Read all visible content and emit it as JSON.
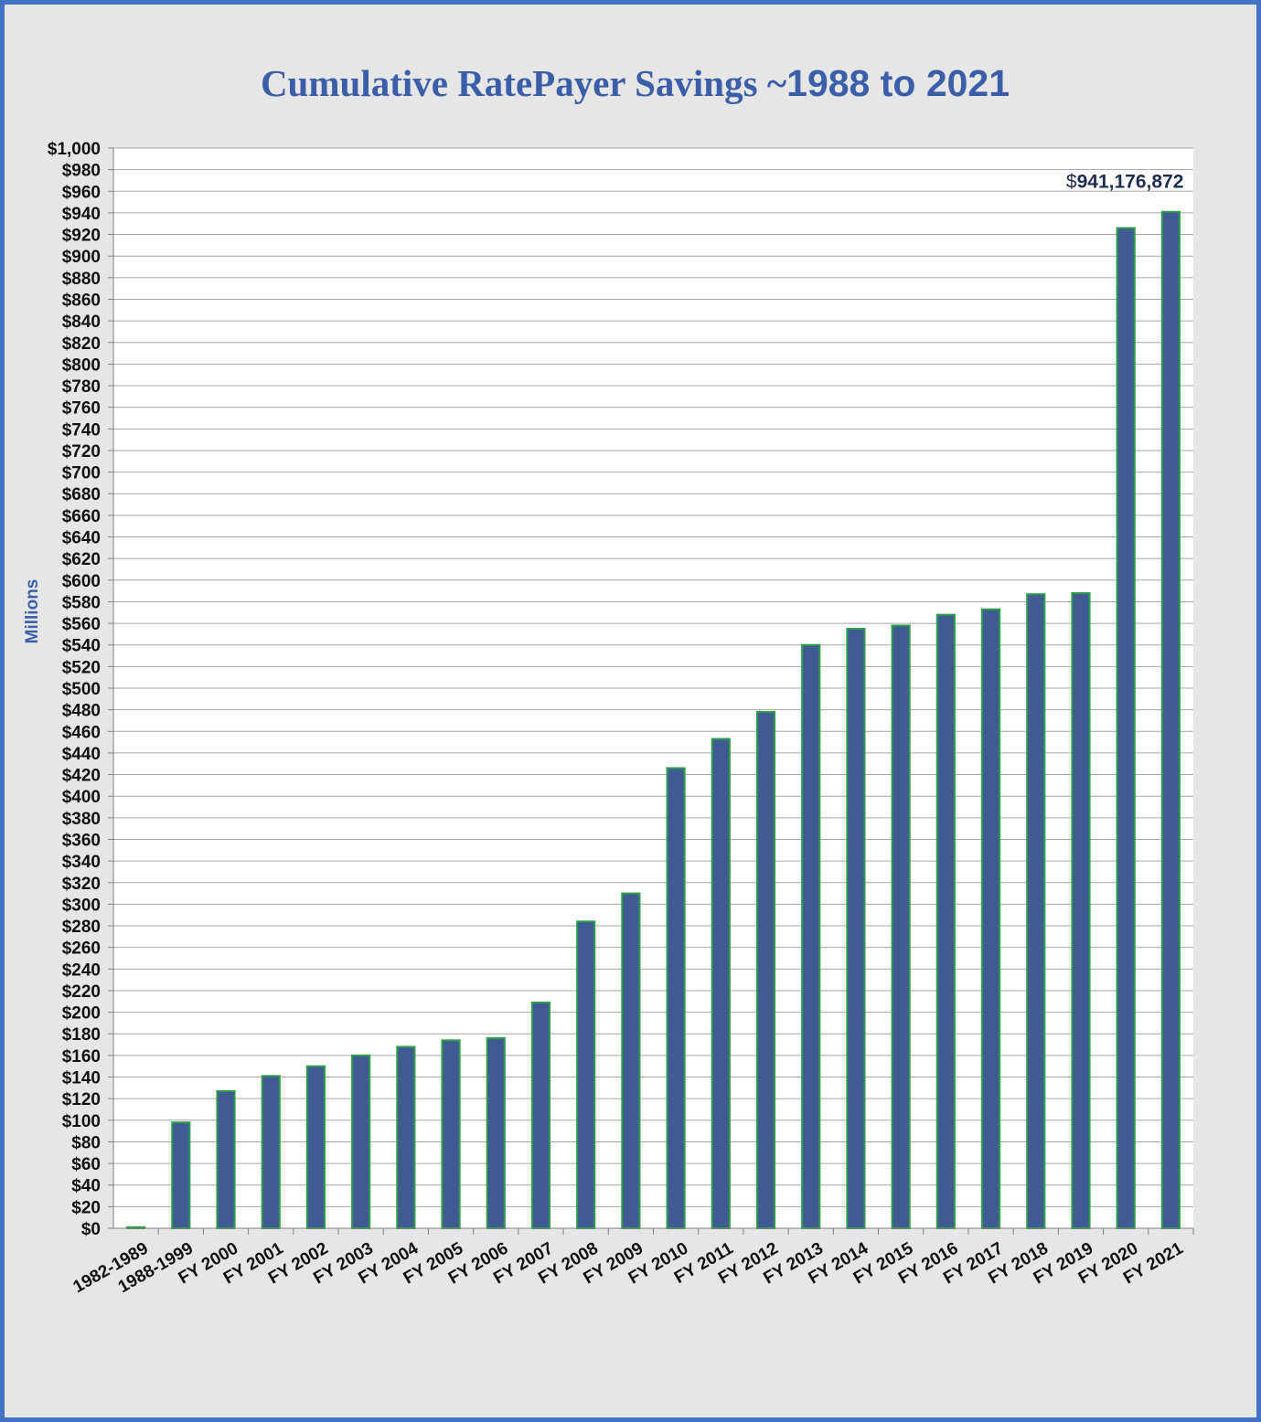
{
  "chart_data": {
    "type": "bar",
    "title": "Cumulative RatePayer Savings ~1988 to 2021",
    "title_parts": {
      "text": "Cumulative RatePayer Savings ~",
      "years": "1988 to 2021"
    },
    "ylabel": "Millions",
    "xlabel": "",
    "ylim": [
      0,
      1000
    ],
    "y_tick_step": 20,
    "y_tick_prefix": "$",
    "grid": true,
    "legend": "none",
    "categories": [
      "1982-1989",
      "1988-1999",
      "FY 2000",
      "FY 2001",
      "FY 2002",
      "FY 2003",
      "FY 2004",
      "FY 2005",
      "FY 2006",
      "FY 2007",
      "FY 2008",
      "FY 2009",
      "FY 2010",
      "FY 2011",
      "FY 2012",
      "FY 2013",
      "FY 2014",
      "FY 2015",
      "FY 2016",
      "FY 2017",
      "FY 2018",
      "FY 2019",
      "FY 2020",
      "FY 2021"
    ],
    "values": [
      1,
      98,
      127,
      141,
      150,
      160,
      168,
      174,
      176,
      209,
      284,
      310,
      426,
      453,
      478,
      540,
      555,
      558,
      568,
      573,
      587,
      588,
      926,
      941
    ],
    "annotation": {
      "category": "FY 2021",
      "prefix": "$",
      "text": "941,176,872"
    },
    "colors": {
      "bar_fill": "#3f5b91",
      "bar_edge": "#2e9e4a",
      "frame": "#4472c4",
      "title": "#3b5ea8",
      "grid": "#a6a6a6",
      "background": "#e6e6e6",
      "plot_area": "#ffffff"
    }
  }
}
